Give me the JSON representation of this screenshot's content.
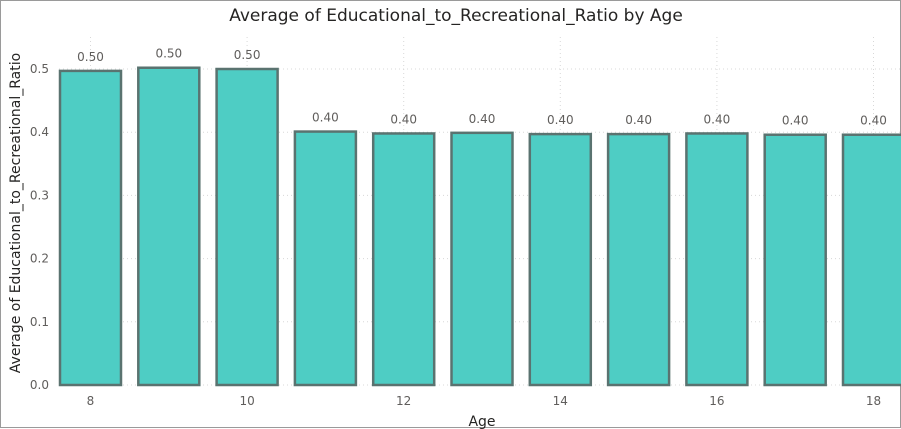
{
  "chart_data": {
    "type": "bar",
    "title": "Average of Educational_to_Recreational_Ratio by Age",
    "xlabel": "Age",
    "ylabel": "Average of Educational_to_Recreational_Ratio",
    "categories": [
      8,
      9,
      10,
      11,
      12,
      13,
      14,
      15,
      16,
      17,
      18
    ],
    "x_tick_labels_shown": [
      "8",
      "10",
      "12",
      "14",
      "16",
      "18"
    ],
    "values": [
      0.497,
      0.502,
      0.5,
      0.401,
      0.398,
      0.399,
      0.397,
      0.397,
      0.398,
      0.396,
      0.396
    ],
    "data_labels": [
      "0.50",
      "0.50",
      "0.50",
      "0.40",
      "0.40",
      "0.40",
      "0.40",
      "0.40",
      "0.40",
      "0.40",
      "0.40"
    ],
    "y_ticks": [
      "0.0",
      "0.1",
      "0.2",
      "0.3",
      "0.4",
      "0.5"
    ],
    "ylim": [
      0,
      0.5
    ],
    "grid": true,
    "bar_color": "#4ECDC4",
    "bar_outline_color": "#5A7370"
  }
}
